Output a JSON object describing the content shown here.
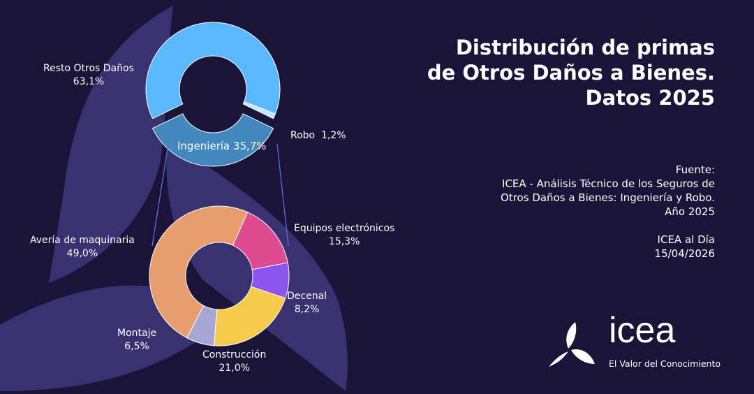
{
  "title": "Distribución de primas de Otros Daños a Bienes. Datos 2025",
  "source": {
    "label": "Fuente:",
    "text": "ICEA - Análisis Técnico de los Seguros de Otros Daños a Bienes: Ingeniería y Robo. Año 2025",
    "publication": "ICEA al Día",
    "date": "15/04/2026"
  },
  "logo": {
    "word": "icea",
    "tagline": "El Valor del Conocimiento"
  },
  "colors": {
    "background": "#1a1538",
    "decor": "#3a3170"
  },
  "chart_data": [
    {
      "type": "pie",
      "variant": "donut",
      "categories": [
        "Resto Otros Daños",
        "Robo",
        "Ingeniería"
      ],
      "values": [
        63.1,
        1.2,
        35.7
      ],
      "labels": [
        "63,1%",
        "1,2%",
        "35,7%"
      ],
      "colors": [
        "#5ab8ff",
        "#c5e4ff",
        "#4287bd"
      ],
      "exploded": "Ingeniería"
    },
    {
      "type": "pie",
      "variant": "donut",
      "breakdown_of": "Ingeniería",
      "categories": [
        "Equipos electrónicos",
        "Decenal",
        "Construcción",
        "Montaje",
        "Avería de maquinaria"
      ],
      "values": [
        15.3,
        8.2,
        21.0,
        6.5,
        49.0
      ],
      "labels": [
        "15,3%",
        "8,2%",
        "21,0%",
        "6,5%",
        "49,0%"
      ],
      "colors": [
        "#de4b91",
        "#8b55ee",
        "#f6cb4c",
        "#a6a5d6",
        "#e89d6e"
      ]
    }
  ]
}
